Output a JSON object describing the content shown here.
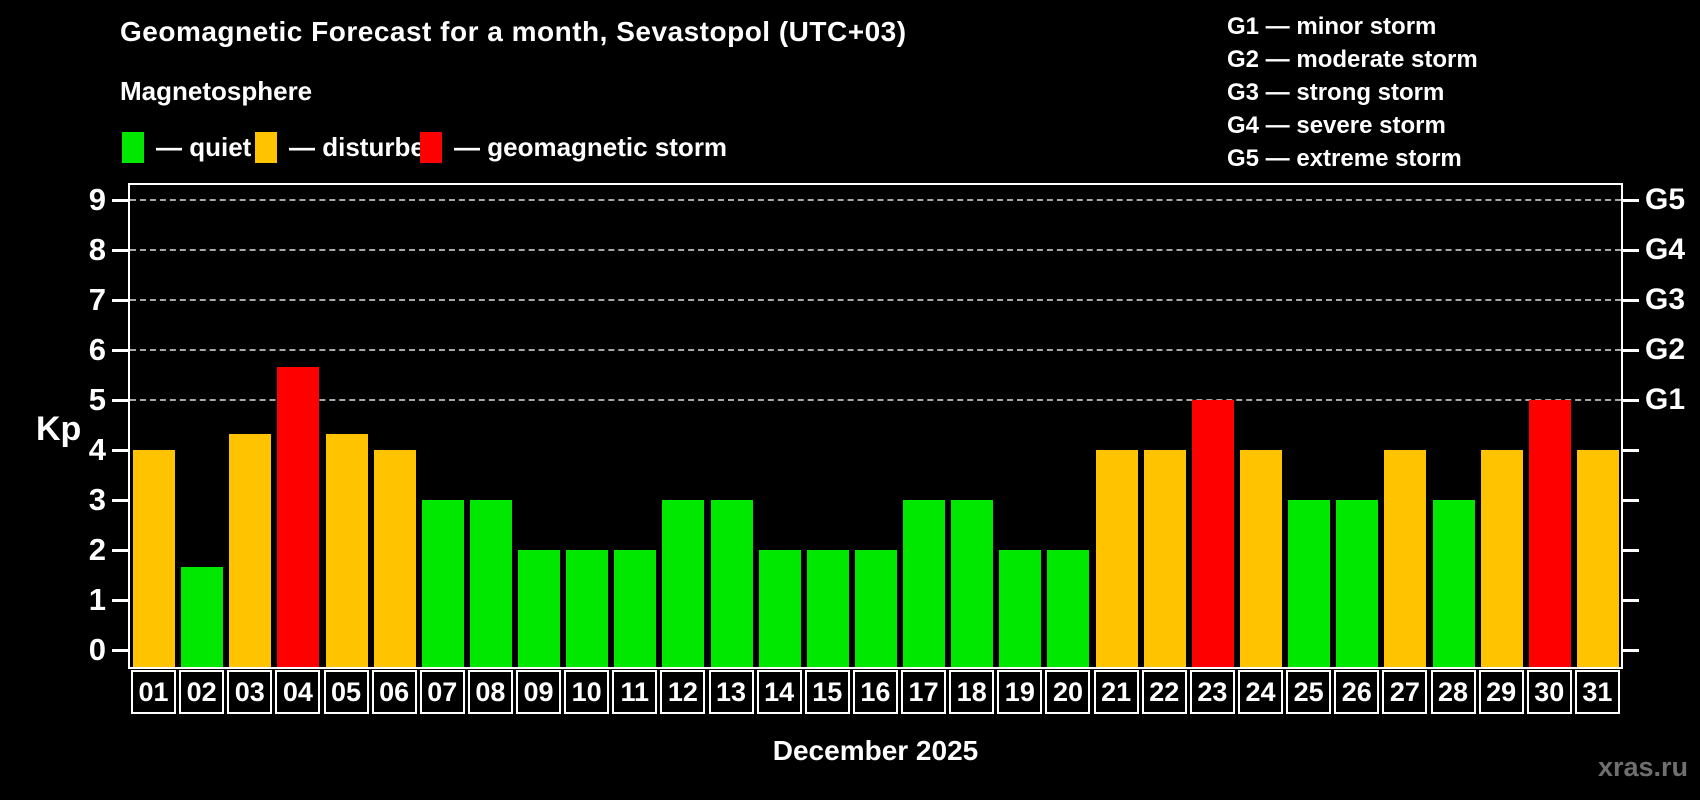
{
  "title": "Geomagnetic Forecast for a month, Sevastopol (UTC+03)",
  "subtitle": "Magnetosphere",
  "legend": {
    "quiet": "— quiet",
    "disturbed": "— disturbed",
    "storm": "— geomagnetic storm"
  },
  "g_legend": [
    "G1 — minor storm",
    "G2 — moderate storm",
    "G3 — strong storm",
    "G4 — severe storm",
    "G5 — extreme storm"
  ],
  "axis": {
    "y_label": "Kp",
    "y_ticks": [
      0,
      1,
      2,
      3,
      4,
      5,
      6,
      7,
      8,
      9
    ],
    "x_label": "December 2025"
  },
  "watermark": "xras.ru",
  "colors": {
    "quiet": "#00e700",
    "disturbed": "#ffc300",
    "storm": "#ff0000",
    "grid": "#a8a8a8",
    "axis": "#ffffff",
    "watermark": "#6f6f6f",
    "background": "#000000"
  },
  "chart_data": {
    "type": "bar",
    "title": "Geomagnetic Forecast for a month, Sevastopol (UTC+03)",
    "xlabel": "December 2025",
    "ylabel": "Kp",
    "ylim": [
      0,
      9.4
    ],
    "grid": "dashed horizontal at Kp 5-9 only",
    "legend_position": "top-left",
    "categories": [
      "01",
      "02",
      "03",
      "04",
      "05",
      "06",
      "07",
      "08",
      "09",
      "10",
      "11",
      "12",
      "13",
      "14",
      "15",
      "16",
      "17",
      "18",
      "19",
      "20",
      "21",
      "22",
      "23",
      "24",
      "25",
      "26",
      "27",
      "28",
      "29",
      "30",
      "31"
    ],
    "values": [
      4.0,
      1.67,
      4.33,
      5.67,
      4.33,
      4.0,
      3.0,
      3.0,
      2.0,
      2.0,
      2.0,
      3.0,
      3.0,
      2.0,
      2.0,
      2.0,
      3.0,
      3.0,
      2.0,
      2.0,
      4.0,
      4.0,
      5.0,
      4.0,
      3.0,
      3.0,
      4.0,
      3.0,
      4.0,
      5.0,
      4.0
    ],
    "statuses": [
      "disturbed",
      "quiet",
      "disturbed",
      "storm",
      "disturbed",
      "disturbed",
      "quiet",
      "quiet",
      "quiet",
      "quiet",
      "quiet",
      "quiet",
      "quiet",
      "quiet",
      "quiet",
      "quiet",
      "quiet",
      "quiet",
      "quiet",
      "quiet",
      "disturbed",
      "disturbed",
      "storm",
      "disturbed",
      "quiet",
      "quiet",
      "disturbed",
      "quiet",
      "disturbed",
      "storm",
      "disturbed"
    ],
    "grid_levels": [
      5,
      6,
      7,
      8,
      9
    ],
    "right_axis_labels": [
      {
        "label": "G1",
        "kp": 5
      },
      {
        "label": "G2",
        "kp": 6
      },
      {
        "label": "G3",
        "kp": 7
      },
      {
        "label": "G4",
        "kp": 8
      },
      {
        "label": "G5",
        "kp": 9
      }
    ]
  }
}
